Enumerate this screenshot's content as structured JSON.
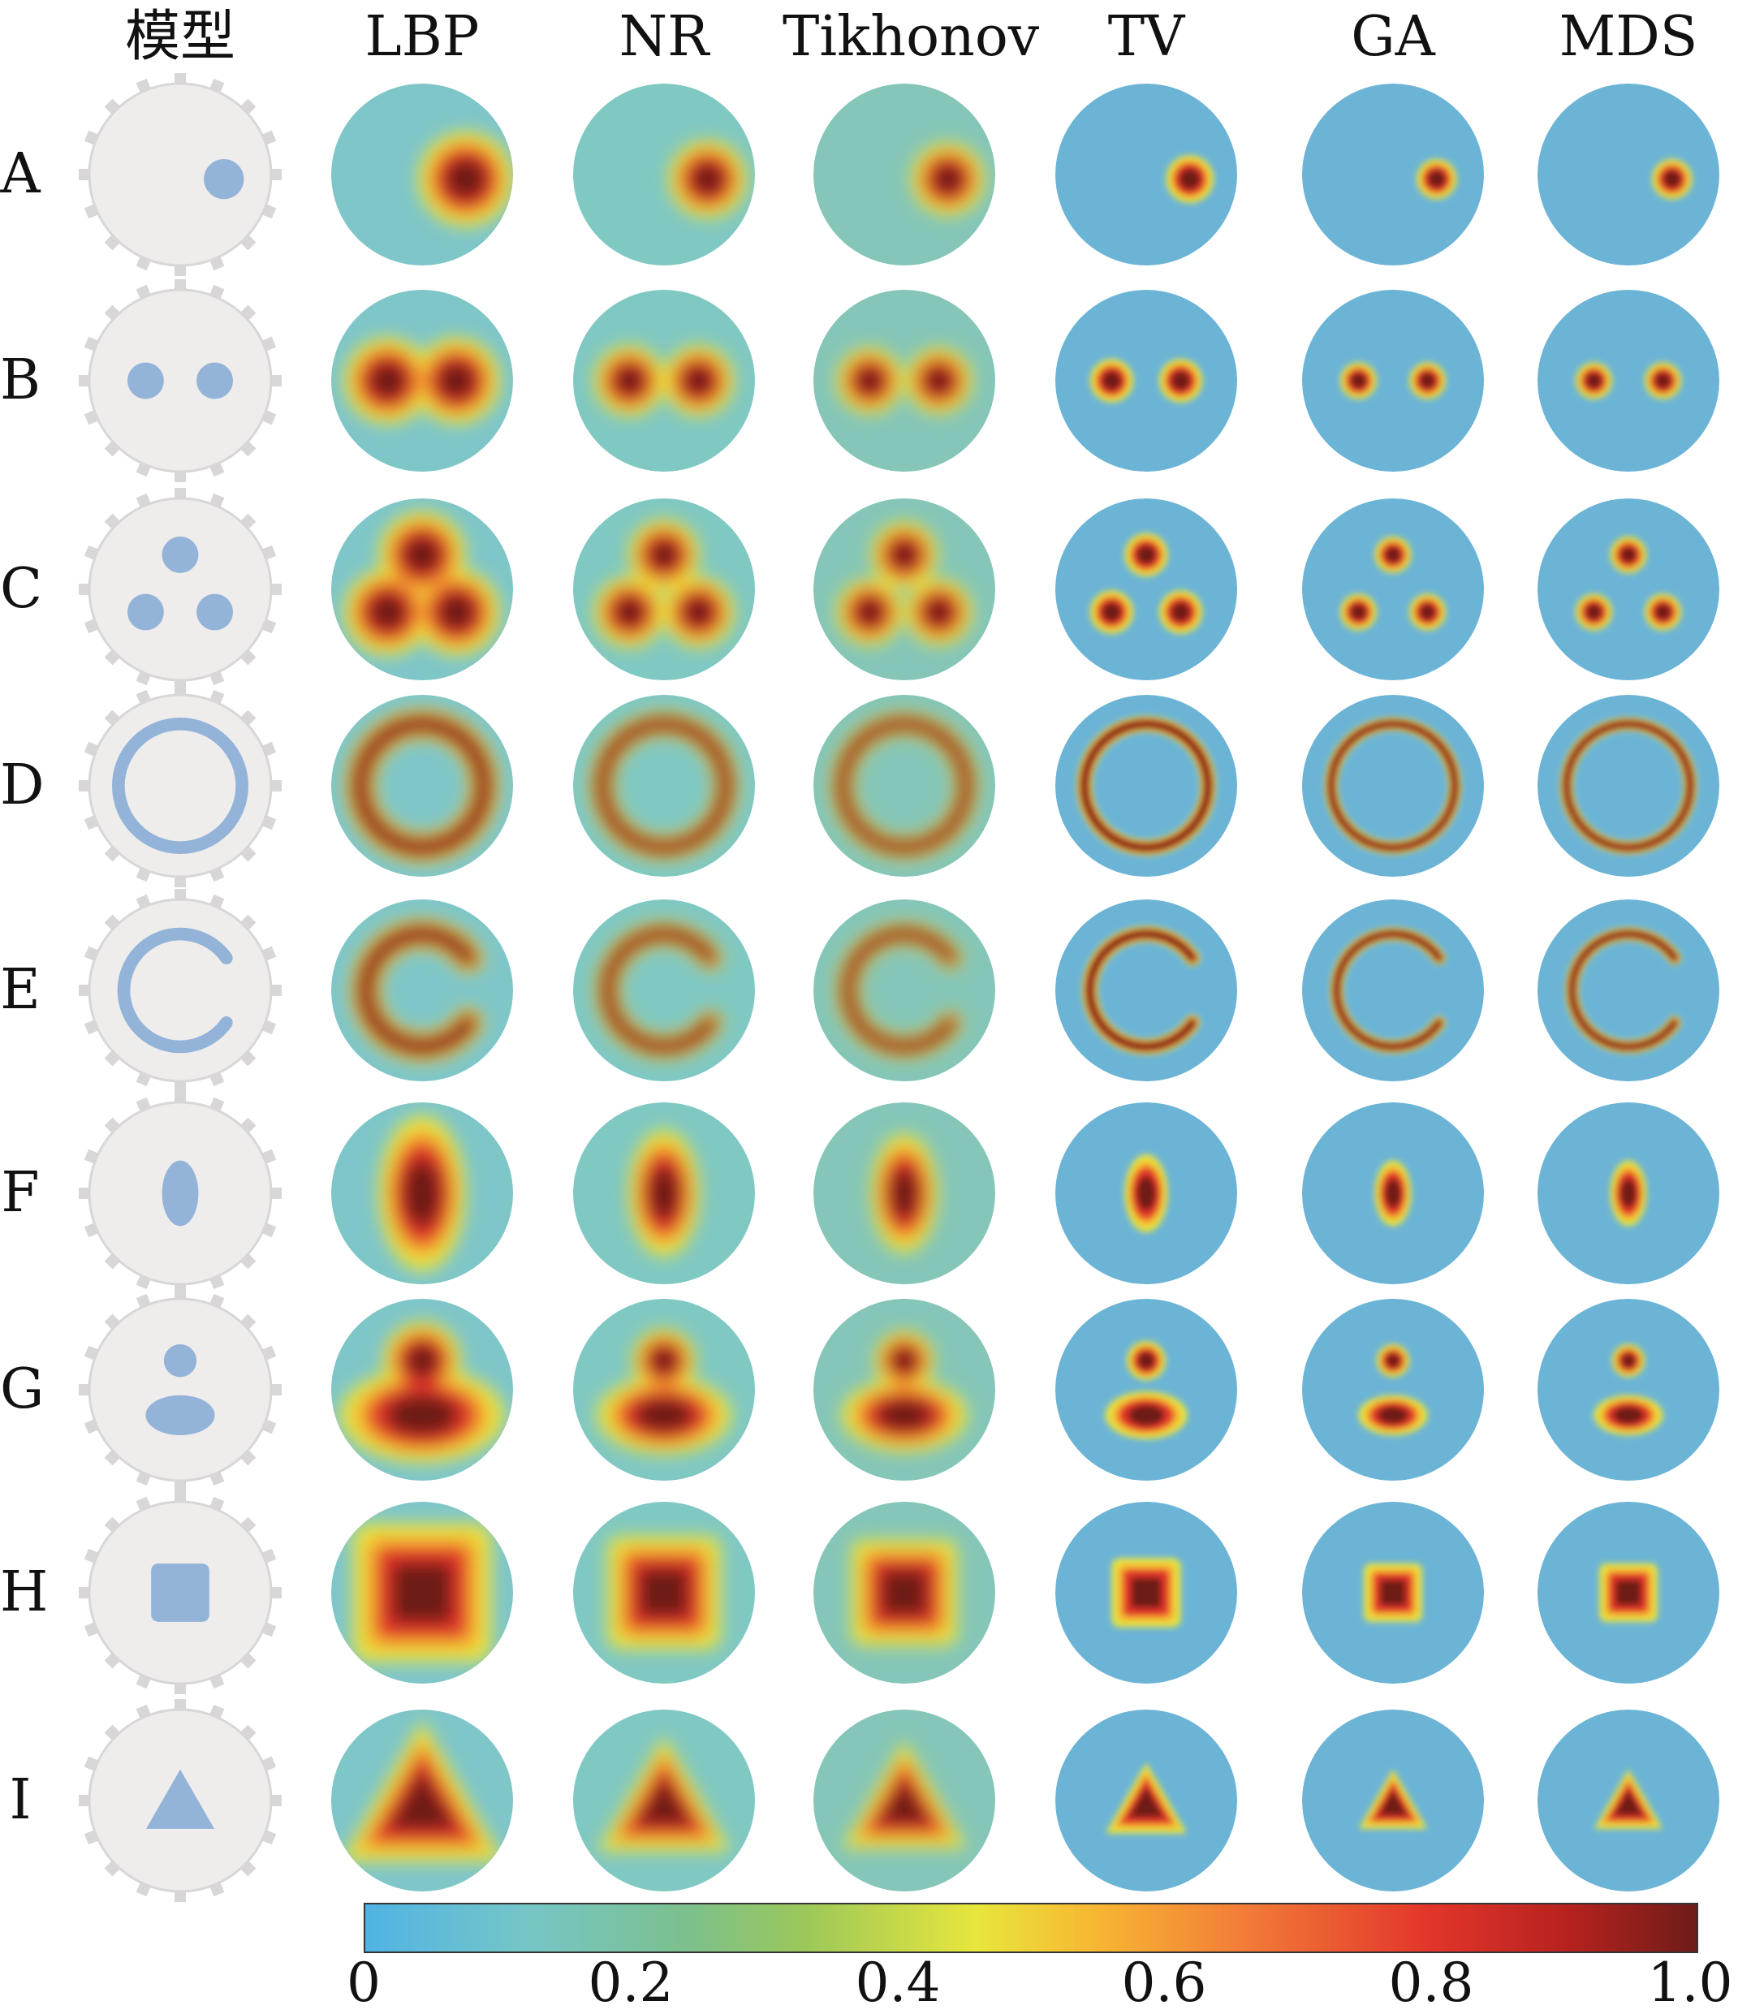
{
  "columns": [
    "模型",
    "LBP",
    "NR",
    "Tikhonov",
    "TV",
    "GA",
    "MDS"
  ],
  "rows": [
    "A",
    "B",
    "C",
    "D",
    "E",
    "F",
    "G",
    "H",
    "I"
  ],
  "colorbar": {
    "ticks": [
      "0",
      "0.2",
      "0.4",
      "0.6",
      "0.8",
      "1.0"
    ],
    "range": [
      0,
      1
    ]
  },
  "colors": {
    "background_field": "#6cb4d6",
    "model_disc": "#efecec",
    "model_inclusion": "#93b4d8",
    "electrode": "#d8d6d6",
    "peak": "#6e1c18",
    "high": "#e2352a",
    "mid": "#f7b632",
    "low": "#e8e63c"
  }
}
